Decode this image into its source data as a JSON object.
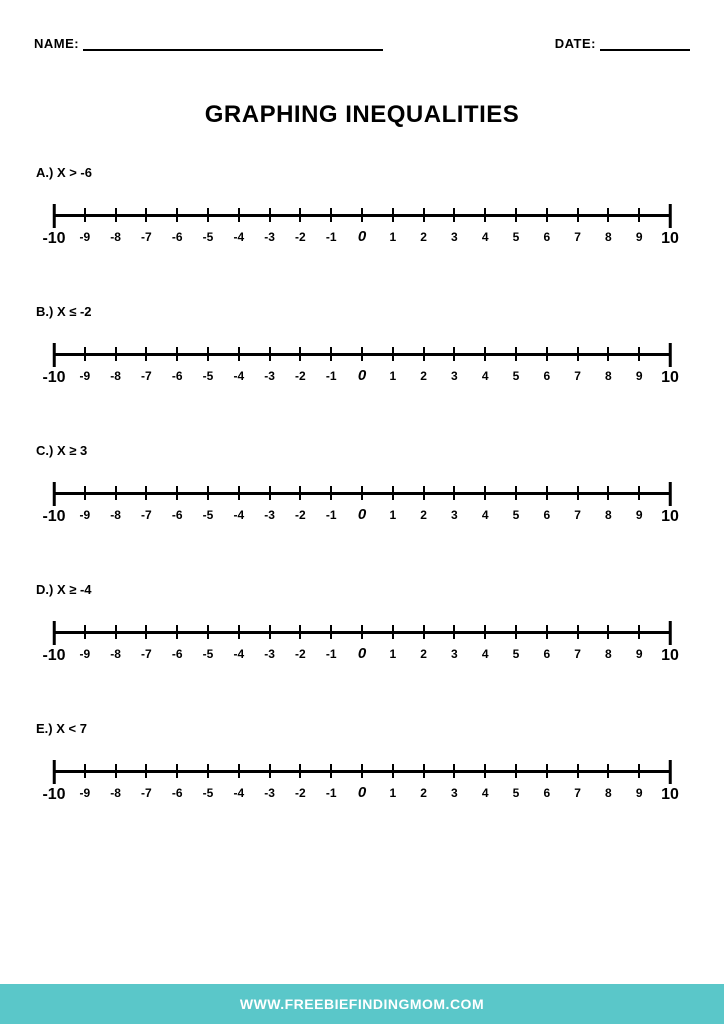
{
  "header": {
    "name_label": "NAME:",
    "date_label": "DATE:"
  },
  "title": "GRAPHING INEQUALITIES",
  "numberline": {
    "min": -10,
    "max": 10,
    "ticks": [
      -10,
      -9,
      -8,
      -7,
      -6,
      -5,
      -4,
      -3,
      -2,
      -1,
      0,
      1,
      2,
      3,
      4,
      5,
      6,
      7,
      8,
      9,
      10
    ]
  },
  "problems": [
    {
      "letter": "A.)",
      "expr": "X > -6"
    },
    {
      "letter": "B.)",
      "expr": "X ≤ -2"
    },
    {
      "letter": "C.)",
      "expr": "X ≥ 3"
    },
    {
      "letter": "D.)",
      "expr": "X ≥ -4"
    },
    {
      "letter": "E.)",
      "expr": "X < 7"
    }
  ],
  "footer": {
    "text": "WWW.FREEBIEFINDINGMOM.COM",
    "background_color": "#5ac7c9",
    "text_color": "#ffffff"
  },
  "colors": {
    "page_bg": "#ffffff",
    "text": "#000000",
    "line": "#000000"
  }
}
